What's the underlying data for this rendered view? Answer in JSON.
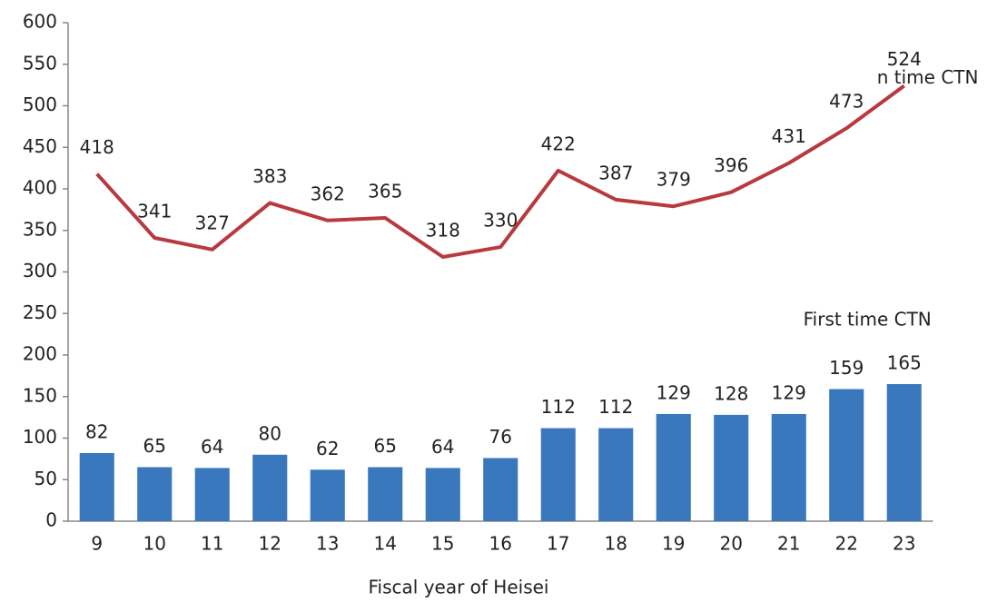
{
  "chart_data": {
    "type": "bar",
    "x_label": "Fiscal year of Heisei",
    "categories": [
      "9",
      "10",
      "11",
      "12",
      "13",
      "14",
      "15",
      "16",
      "17",
      "18",
      "19",
      "20",
      "21",
      "22",
      "23"
    ],
    "series": [
      {
        "name": "First time CTN",
        "type": "bar",
        "color": "#3a78bd",
        "values": [
          82,
          65,
          64,
          80,
          62,
          65,
          64,
          76,
          112,
          112,
          129,
          128,
          129,
          159,
          165
        ]
      },
      {
        "name": "n time CTN",
        "type": "line",
        "color": "#b8393e",
        "values": [
          418,
          341,
          327,
          383,
          362,
          365,
          318,
          330,
          422,
          387,
          379,
          396,
          431,
          473,
          524
        ]
      }
    ],
    "ylim": [
      0,
      600
    ],
    "yticks": [
      0,
      50,
      100,
      150,
      200,
      250,
      300,
      350,
      400,
      450,
      500,
      550,
      600
    ],
    "grid": false
  }
}
